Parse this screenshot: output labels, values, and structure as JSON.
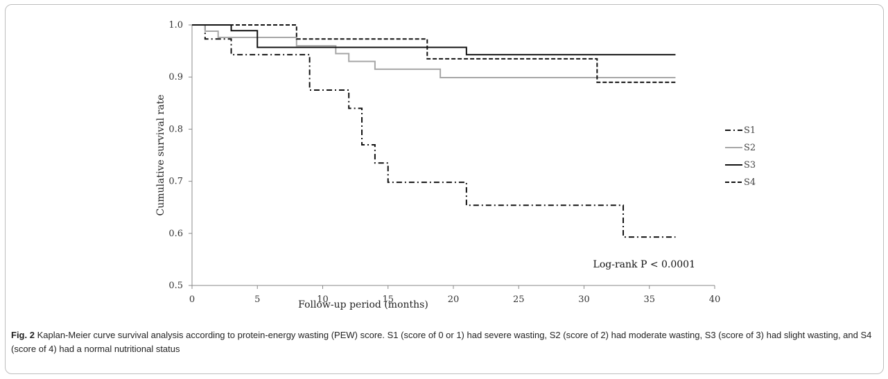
{
  "chart_data": {
    "type": "line",
    "subtype": "kaplan-meier step",
    "xlabel": "Follow-up period (months)",
    "ylabel": "Cumulative survival rate",
    "xlim": [
      0,
      40
    ],
    "ylim": [
      0.5,
      1.0
    ],
    "x_ticks": [
      "0",
      "5",
      "10",
      "15",
      "20",
      "25",
      "30",
      "35",
      "40"
    ],
    "y_ticks": [
      "0.5",
      "0.6",
      "0.7",
      "0.8",
      "0.9",
      "1.0"
    ],
    "grid": false,
    "legend_position": "right",
    "annotation": "Log-rank P < 0.0001",
    "series": [
      {
        "name": "S1",
        "color": "#111111",
        "style": "dash-dot",
        "x": [
          0,
          1,
          3,
          9,
          12,
          13,
          14,
          15,
          21,
          33,
          37
        ],
        "y": [
          1.0,
          0.973,
          0.943,
          0.875,
          0.84,
          0.77,
          0.735,
          0.698,
          0.654,
          0.593,
          0.593
        ]
      },
      {
        "name": "S2",
        "color": "#a6a6a6",
        "style": "solid",
        "x": [
          0,
          1,
          2,
          8,
          11,
          12,
          14,
          19,
          37
        ],
        "y": [
          1.0,
          0.988,
          0.976,
          0.96,
          0.945,
          0.93,
          0.915,
          0.899,
          0.899
        ]
      },
      {
        "name": "S3",
        "color": "#111111",
        "style": "solid",
        "x": [
          0,
          3,
          5,
          21,
          37
        ],
        "y": [
          1.0,
          0.989,
          0.957,
          0.943,
          0.943
        ]
      },
      {
        "name": "S4",
        "color": "#111111",
        "style": "dashed",
        "x": [
          0,
          8,
          18,
          31,
          37
        ],
        "y": [
          1.0,
          0.973,
          0.935,
          0.89,
          0.89
        ]
      }
    ]
  },
  "caption": {
    "label": "Fig. 2",
    "text": "Kaplan-Meier curve survival analysis according to protein-energy wasting (PEW) score. S1 (score of 0 or 1) had severe wasting, S2 (score of 2) had moderate wasting, S3 (score of 3) had slight wasting, and S4 (score of 4) had a normal nutritional status"
  }
}
